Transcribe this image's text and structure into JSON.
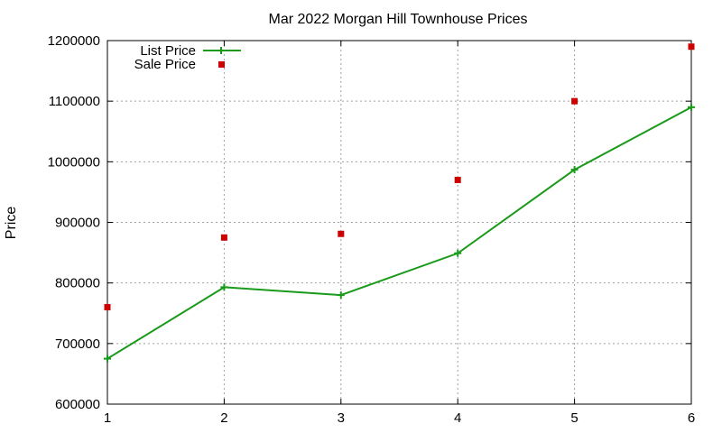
{
  "chart_data": {
    "type": "line",
    "title": "Mar 2022 Morgan Hill Townhouse Prices",
    "xlabel": "",
    "ylabel": "Price",
    "x": [
      1,
      2,
      3,
      4,
      5,
      6
    ],
    "xlim": [
      1,
      6
    ],
    "ylim": [
      600000,
      1200000
    ],
    "x_ticks": [
      "1",
      "2",
      "3",
      "4",
      "5",
      "6"
    ],
    "y_ticks": [
      "600000",
      "700000",
      "800000",
      "900000",
      "1000000",
      "1100000",
      "1200000"
    ],
    "grid": true,
    "legend_position": "top-left",
    "series": [
      {
        "name": "List Price",
        "style": "line+cross",
        "color": "#1a9a1a",
        "values": [
          675000,
          793000,
          780000,
          849000,
          987000,
          1090000
        ]
      },
      {
        "name": "Sale Price",
        "style": "square-markers",
        "color": "#cc0000",
        "values": [
          760000,
          875000,
          881000,
          970000,
          1100000,
          1190000
        ]
      }
    ]
  }
}
